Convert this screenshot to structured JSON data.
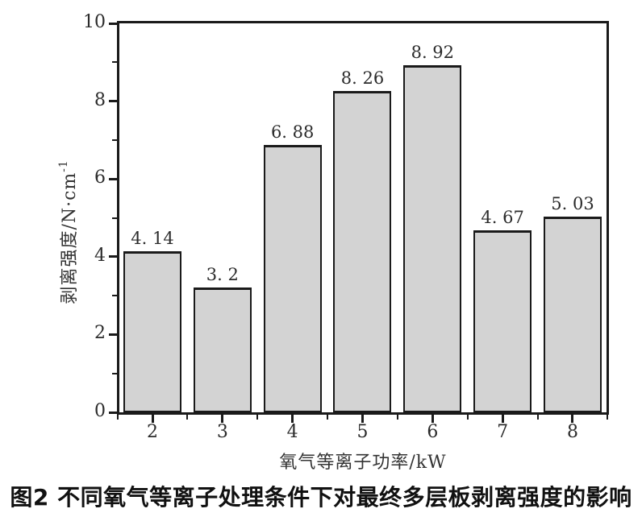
{
  "figure": {
    "caption": "图2 不同氧气等离子处理条件下对最终多层板剥离强度的影响",
    "background": "#ffffff"
  },
  "chart_data": {
    "type": "bar",
    "title": "",
    "categories": [
      "2",
      "3",
      "4",
      "5",
      "6",
      "7",
      "8"
    ],
    "values": [
      4.14,
      3.2,
      6.88,
      8.26,
      8.92,
      4.67,
      5.03
    ],
    "value_labels": [
      "4. 14",
      "3. 2",
      "6. 88",
      "8. 26",
      "8. 92",
      "4. 67",
      "5. 03"
    ],
    "xlabel": "氧气等离子功率/kW",
    "ylabel": "剥离强度/N·cm⁻¹",
    "ylabel_base": "剥离强度/N·cm",
    "ylabel_sup": "-1",
    "xlim_categories": [
      "2",
      "8"
    ],
    "ylim": [
      0,
      10
    ],
    "yticks_major": [
      0,
      2,
      4,
      6,
      8,
      10
    ],
    "yticks_minor": [
      1,
      3,
      5,
      7,
      9
    ],
    "grid": false,
    "legend": "none",
    "bar_fill": "#d3d3d3",
    "bar_border": "#1a1a1a",
    "axis_color": "#1a1a1a"
  }
}
